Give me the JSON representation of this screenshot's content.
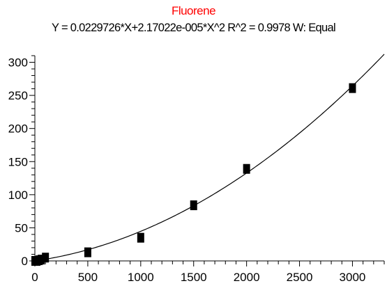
{
  "chart_data": {
    "type": "scatter",
    "title": "Fluorene",
    "title_color": "#ff0000",
    "subtitle": "Y = 0.0229726*X+2.17022e-005*X^2   R^2 = 0.9978   W: Equal",
    "xlim": [
      0,
      3300
    ],
    "ylim": [
      0,
      310
    ],
    "x_ticks": [
      0,
      500,
      1000,
      1500,
      2000,
      2500,
      3000
    ],
    "y_ticks": [
      0,
      50,
      100,
      150,
      200,
      250,
      300
    ],
    "fit": {
      "a": 0.0229726,
      "b": 2.17022e-05
    },
    "points": [
      {
        "x": 0,
        "y": 0
      },
      {
        "x": 20,
        "y": 0
      },
      {
        "x": 40,
        "y": 1
      },
      {
        "x": 60,
        "y": 2
      },
      {
        "x": 100,
        "y": 5
      },
      {
        "x": 500,
        "y": 13
      },
      {
        "x": 1000,
        "y": 35
      },
      {
        "x": 1500,
        "y": 84
      },
      {
        "x": 2000,
        "y": 139
      },
      {
        "x": 3000,
        "y": 261
      }
    ],
    "xlabel": "",
    "ylabel": ""
  }
}
